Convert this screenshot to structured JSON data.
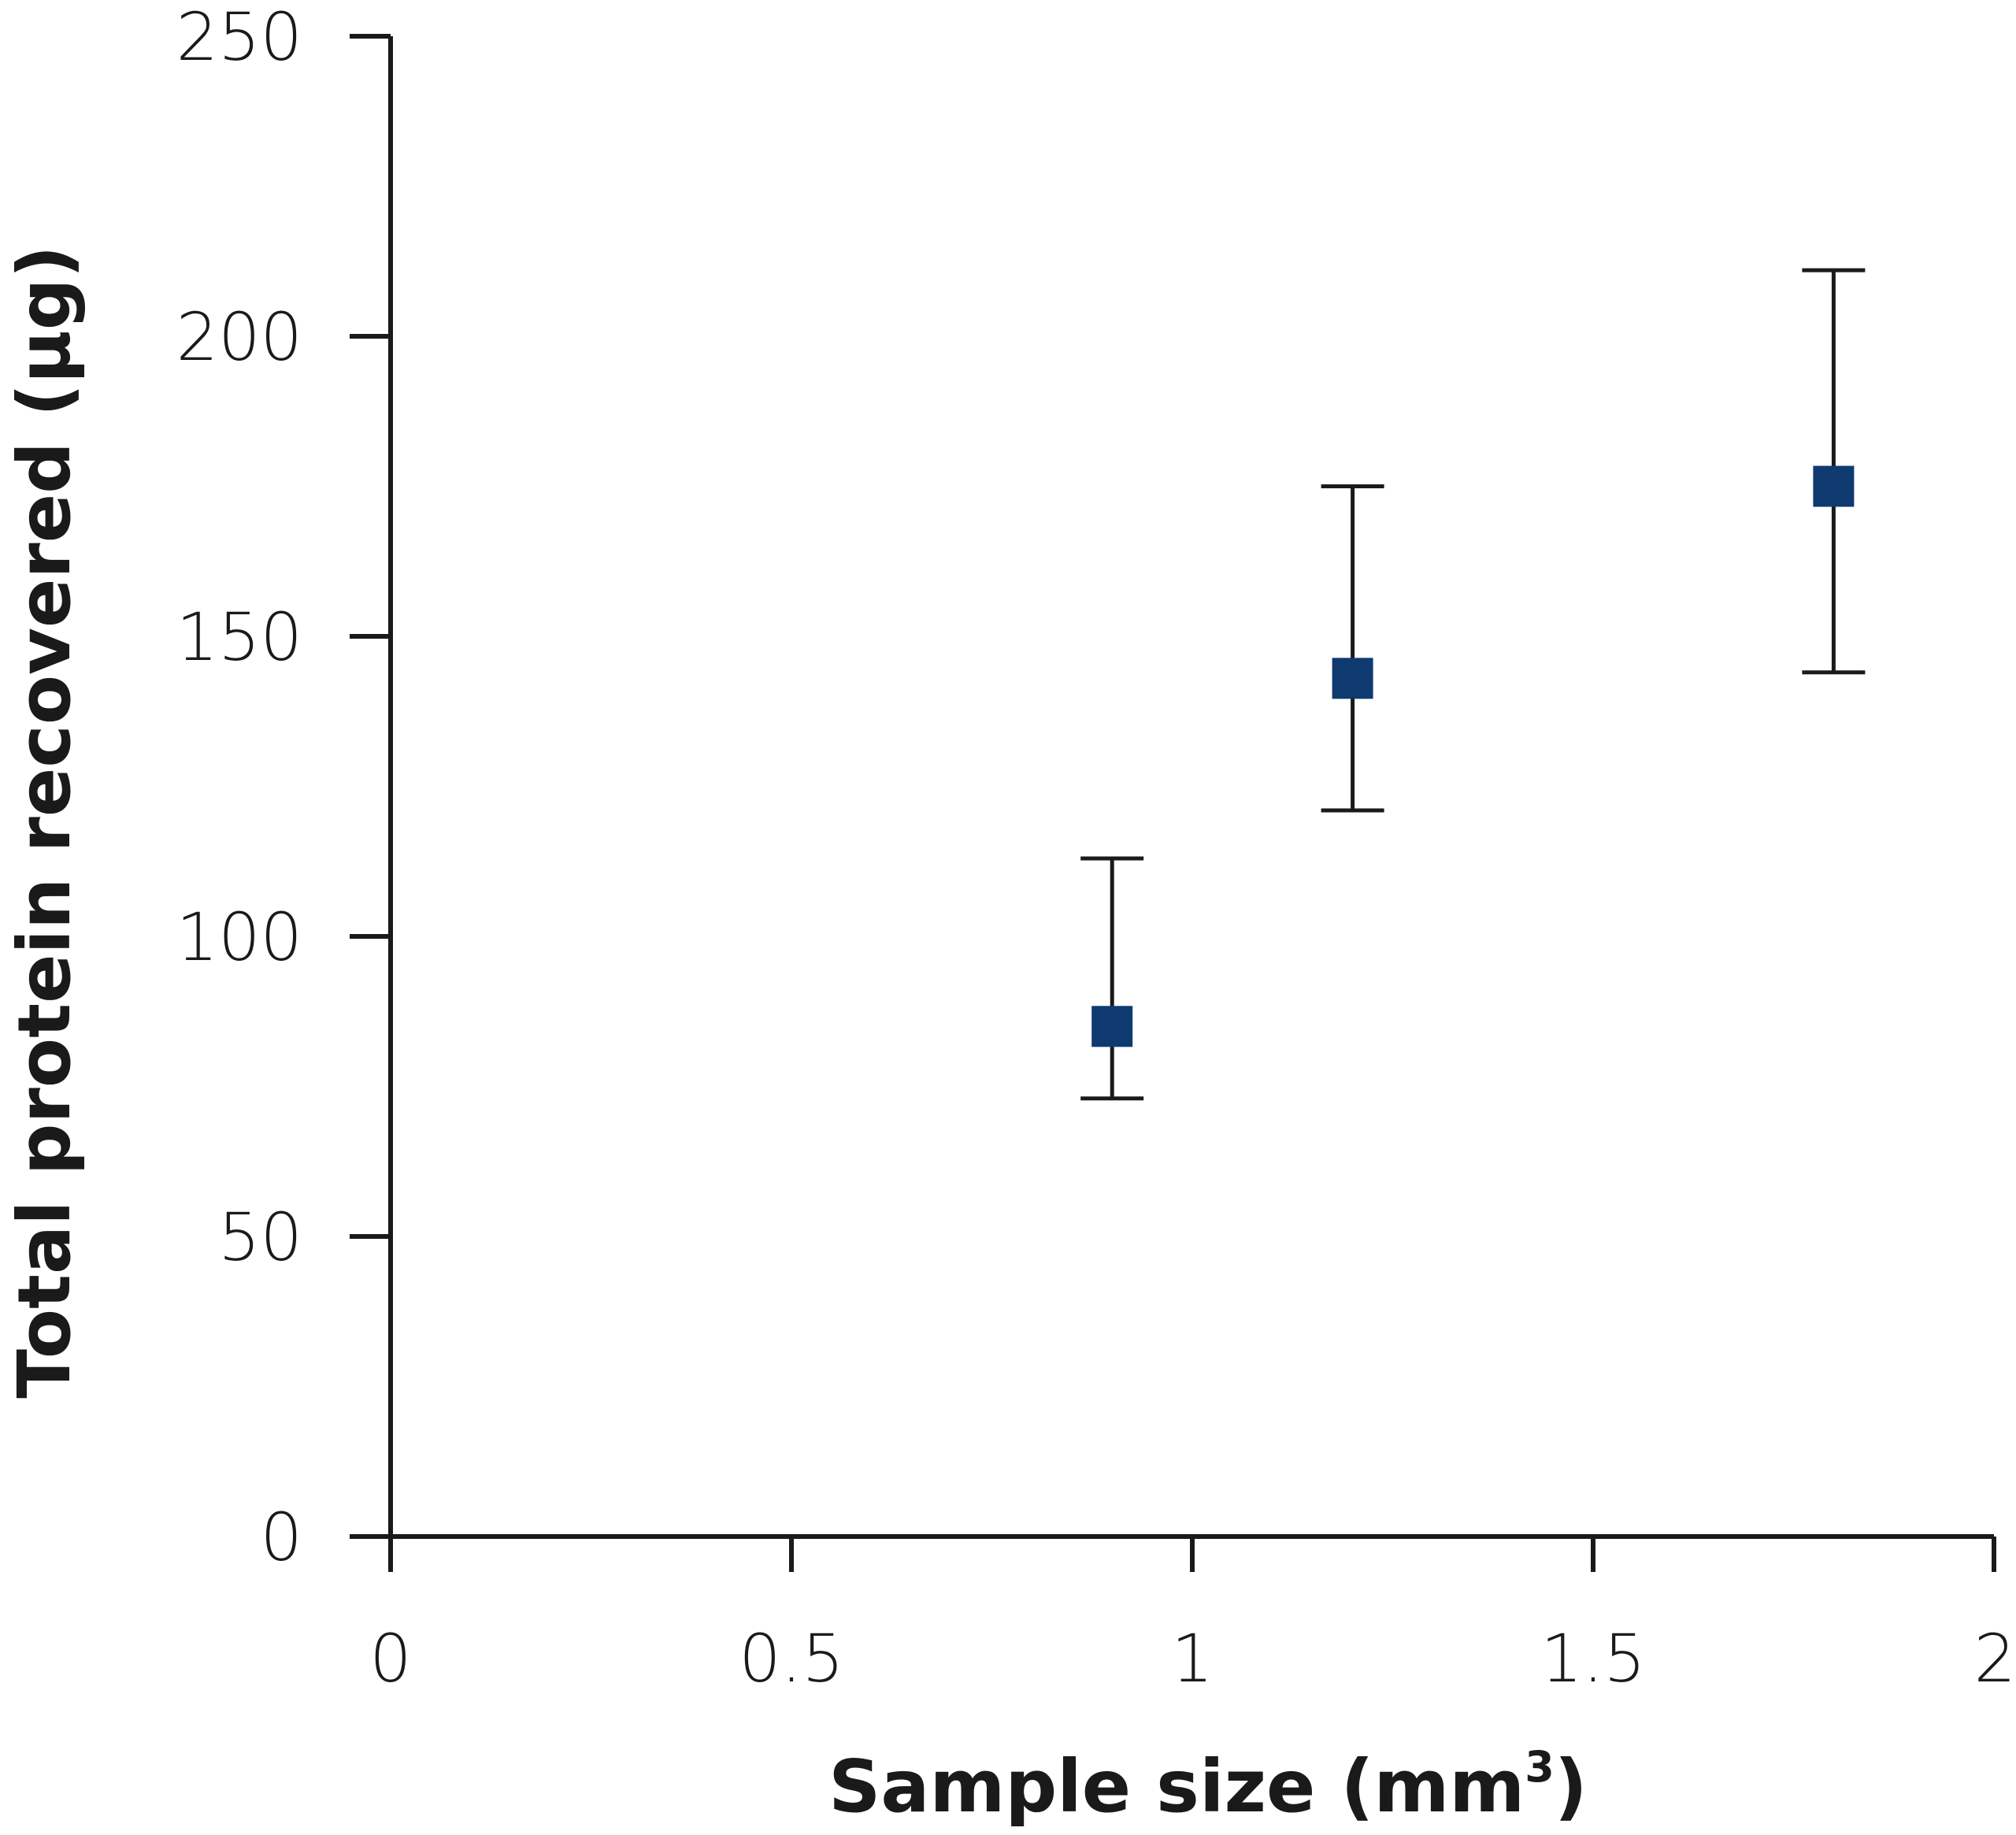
{
  "chart_data": {
    "type": "scatter",
    "xlabel": "Sample size (mm",
    "xlabel_sup": "3",
    "xlabel_close": ")",
    "ylabel": "Total protein recovered (µg)",
    "xlim": [
      0,
      2
    ],
    "ylim": [
      0,
      250
    ],
    "x_ticks": [
      0,
      0.5,
      1,
      1.5,
      2
    ],
    "x_tick_labels": [
      "0",
      "0.5",
      "1",
      "1.5",
      "2"
    ],
    "y_ticks": [
      0,
      50,
      100,
      150,
      200,
      250
    ],
    "y_tick_labels": [
      "0",
      "50",
      "100",
      "150",
      "200",
      "250"
    ],
    "grid": false,
    "marker": "square",
    "marker_color": "#0e3a70",
    "points": [
      {
        "x": 0.9,
        "y": 85,
        "err_low": 73,
        "err_high": 113
      },
      {
        "x": 1.2,
        "y": 143,
        "err_low": 121,
        "err_high": 175
      },
      {
        "x": 1.8,
        "y": 175,
        "err_low": 144,
        "err_high": 211
      }
    ]
  }
}
